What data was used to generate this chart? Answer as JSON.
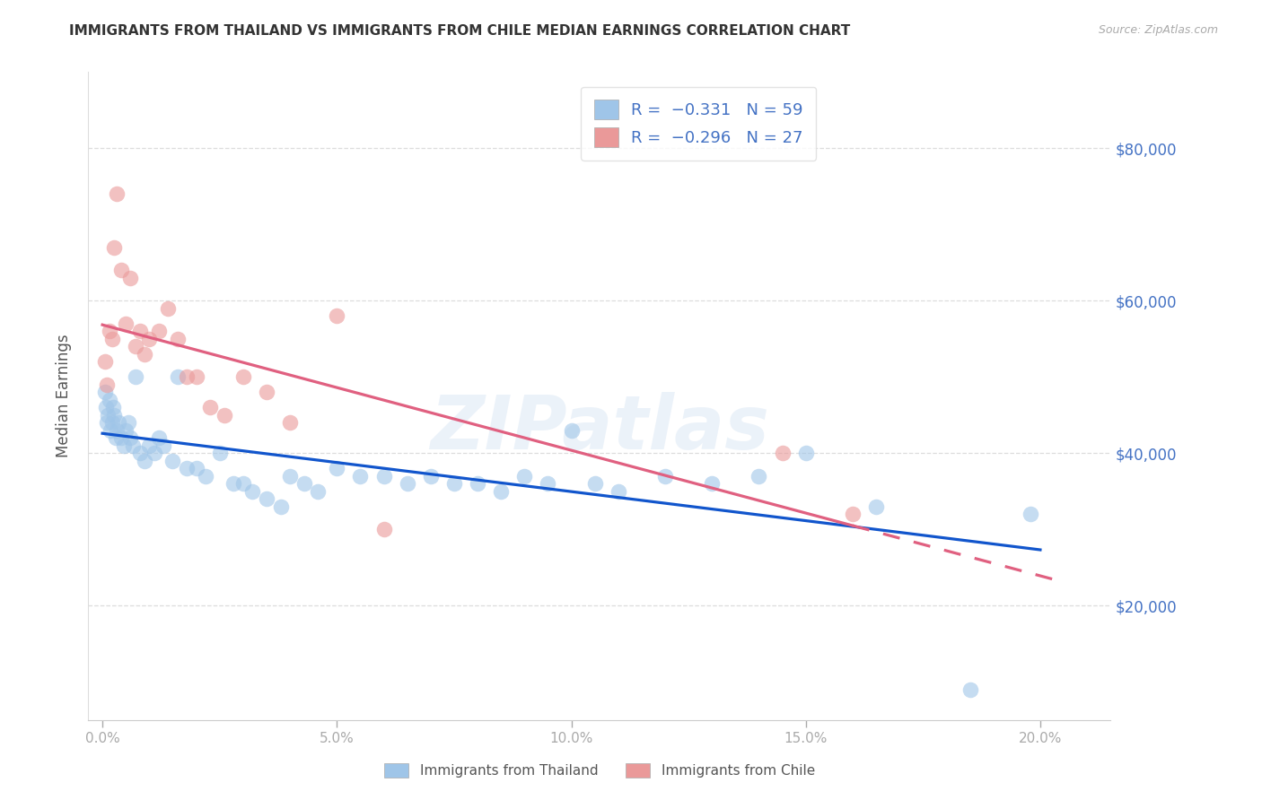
{
  "title": "IMMIGRANTS FROM THAILAND VS IMMIGRANTS FROM CHILE MEDIAN EARNINGS CORRELATION CHART",
  "source": "Source: ZipAtlas.com",
  "ylabel": "Median Earnings",
  "ytick_labels": [
    "$20,000",
    "$40,000",
    "$60,000",
    "$80,000"
  ],
  "ytick_vals": [
    20000,
    40000,
    60000,
    80000
  ],
  "xtick_labels": [
    "0.0%",
    "5.0%",
    "10.0%",
    "15.0%",
    "20.0%"
  ],
  "xtick_vals": [
    0.0,
    5.0,
    10.0,
    15.0,
    20.0
  ],
  "ylim": [
    5000,
    90000
  ],
  "xlim": [
    -0.3,
    21.5
  ],
  "thailand_color": "#9fc5e8",
  "chile_color": "#ea9999",
  "trend_blue": "#1155cc",
  "trend_pink": "#e06080",
  "legend_text_color": "#4472c4",
  "watermark": "ZIPatlas",
  "thailand_x": [
    0.05,
    0.08,
    0.1,
    0.12,
    0.15,
    0.18,
    0.2,
    0.22,
    0.25,
    0.28,
    0.3,
    0.35,
    0.4,
    0.45,
    0.5,
    0.55,
    0.6,
    0.65,
    0.7,
    0.8,
    0.9,
    1.0,
    1.1,
    1.2,
    1.3,
    1.5,
    1.6,
    1.8,
    2.0,
    2.2,
    2.5,
    2.8,
    3.0,
    3.2,
    3.5,
    3.8,
    4.0,
    4.3,
    4.6,
    5.0,
    5.5,
    6.0,
    6.5,
    7.0,
    7.5,
    8.0,
    8.5,
    9.0,
    9.5,
    10.0,
    10.5,
    11.0,
    12.0,
    13.0,
    14.0,
    15.0,
    16.5,
    18.5,
    19.8
  ],
  "thailand_y": [
    48000,
    46000,
    44000,
    45000,
    47000,
    43000,
    44000,
    46000,
    45000,
    42000,
    43000,
    44000,
    42000,
    41000,
    43000,
    44000,
    42000,
    41000,
    50000,
    40000,
    39000,
    41000,
    40000,
    42000,
    41000,
    39000,
    50000,
    38000,
    38000,
    37000,
    40000,
    36000,
    36000,
    35000,
    34000,
    33000,
    37000,
    36000,
    35000,
    38000,
    37000,
    37000,
    36000,
    37000,
    36000,
    36000,
    35000,
    37000,
    36000,
    43000,
    36000,
    35000,
    37000,
    36000,
    37000,
    40000,
    33000,
    9000,
    32000
  ],
  "chile_x": [
    0.05,
    0.1,
    0.15,
    0.2,
    0.25,
    0.3,
    0.4,
    0.5,
    0.6,
    0.7,
    0.8,
    0.9,
    1.0,
    1.2,
    1.4,
    1.6,
    1.8,
    2.0,
    2.3,
    2.6,
    3.0,
    3.5,
    4.0,
    5.0,
    6.0,
    14.5,
    16.0
  ],
  "chile_y": [
    52000,
    49000,
    56000,
    55000,
    67000,
    74000,
    64000,
    57000,
    63000,
    54000,
    56000,
    53000,
    55000,
    56000,
    59000,
    55000,
    50000,
    50000,
    46000,
    45000,
    50000,
    48000,
    44000,
    58000,
    30000,
    40000,
    32000
  ]
}
